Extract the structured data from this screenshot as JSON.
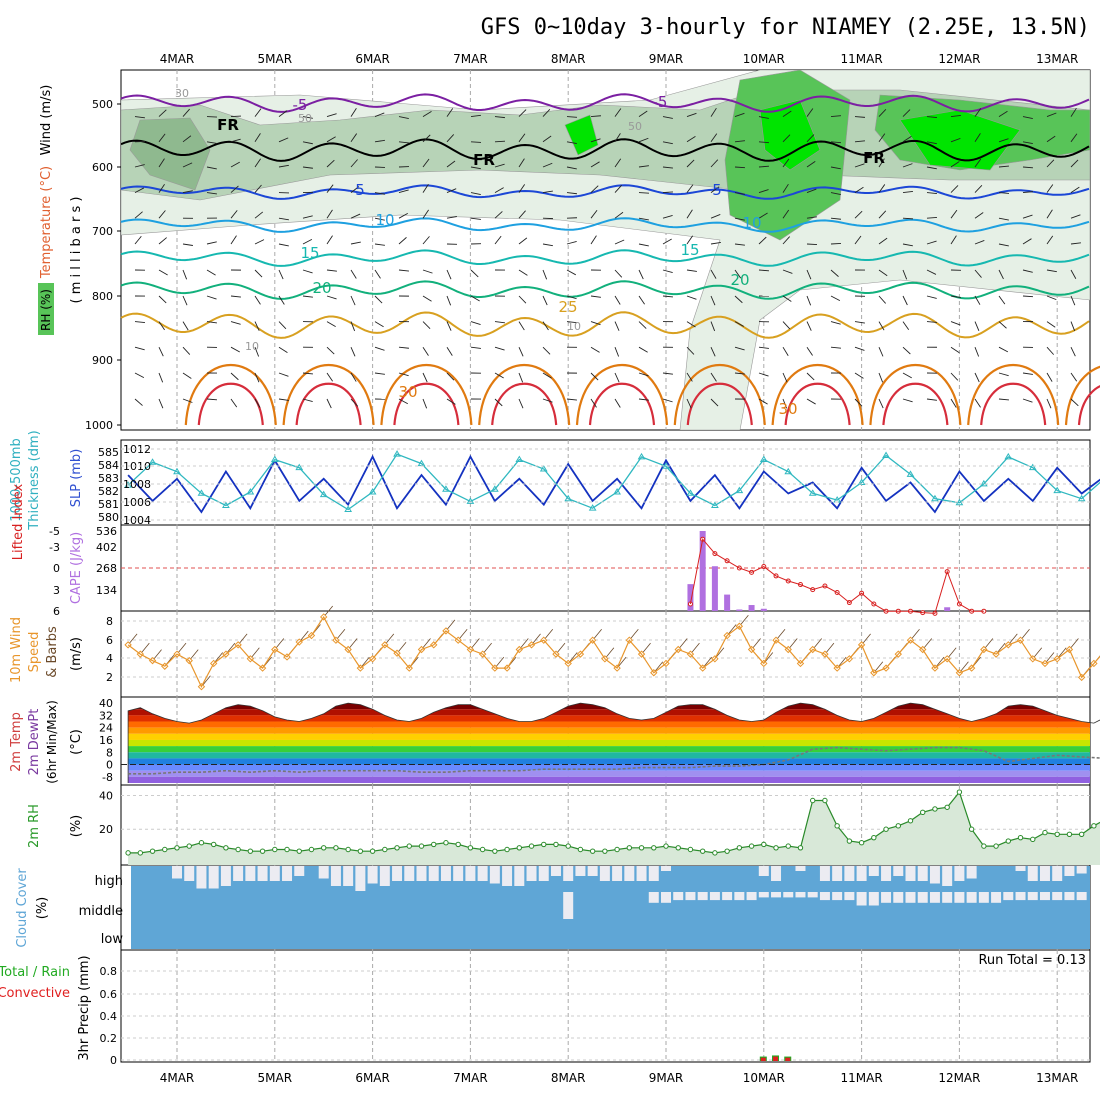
{
  "title": "GFS 0~10day 3-hourly for NIAMEY (2.25E, 13.5N)",
  "colors": {
    "rh_light": "#e6f0e6",
    "rh_mid": "#b7d3b7",
    "rh_dark": "#8fb98f",
    "rh_green": "#58c458",
    "rh_bright": "#00e400",
    "isotherm_neg": "#7b1fa2",
    "isotherm_0": "#000000",
    "isotherm_5": "#1c47d6",
    "isotherm_10": "#1ea0e0",
    "isotherm_15": "#16b8b0",
    "isotherm_20": "#12b07c",
    "isotherm_25": "#d8a020",
    "isotherm_30": "#e07a10",
    "isotherm_35": "#d62d3b",
    "slp": "#1432c0",
    "thickness": "#30b8c0",
    "cape": "#b070e0",
    "lifted": "#d82020",
    "wind": "#e8962c",
    "cloud": "#5fa6d6",
    "cloud_clear": "#ececf2",
    "precip_total": "#22aa22",
    "precip_conv": "#e02020",
    "rh2m": "#2a8a2a"
  },
  "dates": [
    "4MAR",
    "5MAR",
    "6MAR",
    "7MAR",
    "8MAR",
    "9MAR",
    "10MAR",
    "11MAR",
    "12MAR",
    "13MAR"
  ],
  "panels": {
    "upper": {
      "ylabel_left": [
        "Wind (m/s)",
        "Temperature (°C)",
        "RH (%)"
      ],
      "ylabel_right": "( m i l l i b a r s )",
      "levels": [
        "500",
        "600",
        "700",
        "800",
        "900",
        "1000"
      ],
      "isotherm_labels": [
        "-5",
        "FR",
        "5",
        "10",
        "15",
        "20",
        "25",
        "30"
      ],
      "rh_labels": [
        "50",
        "30",
        "10"
      ]
    },
    "slp": {
      "ylabel_a": "1000-500mb",
      "ylabel_b": "Thickness (dm)",
      "ylabel_c": "SLP (mb)",
      "left_ticks": [
        "585",
        "584",
        "583",
        "582",
        "581",
        "580"
      ],
      "right_ticks": [
        "1012",
        "1010",
        "1008",
        "1006",
        "1004"
      ]
    },
    "cape": {
      "ylabel_a": "Lifted Index",
      "ylabel_b": "CAPE (J/kg)",
      "left_ticks": [
        "-5",
        "-3",
        "0",
        "3",
        "6"
      ],
      "right_ticks": [
        "536",
        "402",
        "268",
        "134"
      ]
    },
    "wind": {
      "ylabel_a": "10m Wind",
      "ylabel_b": "Speed",
      "ylabel_c": "& Barbs",
      "ylabel_d": "(m/s)",
      "ticks": [
        "8",
        "6",
        "4",
        "2"
      ]
    },
    "temp": {
      "ylabel_a": "2m Temp",
      "ylabel_b": "2m DewPt",
      "ylabel_c": "(6hr Min/Max)",
      "ylabel_d": "(°C)",
      "ticks": [
        "40",
        "32",
        "24",
        "16",
        "8",
        "0",
        "-8"
      ]
    },
    "rh": {
      "ylabel_a": "2m RH",
      "ylabel_b": "(%)",
      "ticks": [
        "40",
        "20"
      ]
    },
    "cloud": {
      "ylabel_a": "Cloud Cover",
      "ylabel_b": "(%)",
      "rows": [
        "high",
        "middle",
        "low"
      ]
    },
    "precip": {
      "ylabel_a": "Total / Rain",
      "ylabel_b": "Convective",
      "ylabel_c": "3hr Precip (mm)",
      "ticks": [
        "0.8",
        "0.6",
        "0.4",
        "0.2",
        "0"
      ],
      "run_total": "Run Total = 0.13"
    }
  },
  "chart_data": [
    {
      "type": "line",
      "name": "sea level pressure",
      "unit": "mb",
      "ylim": [
        1003,
        1014
      ],
      "x_start": "3MAR 12Z",
      "step_hours": 6,
      "values": [
        1009.5,
        1006,
        1009,
        1004.5,
        1010,
        1005,
        1011.5,
        1006,
        1009,
        1005.5,
        1012,
        1005,
        1009.5,
        1005.5,
        1012,
        1006,
        1009,
        1005.5,
        1011,
        1006,
        1009,
        1005,
        1011.5,
        1006,
        1009.5,
        1005,
        1010,
        1007,
        1008.5,
        1005,
        1010.5,
        1006,
        1008.5,
        1004.5,
        1010,
        1006,
        1009,
        1006,
        1010.5,
        1007,
        1009.5,
        1007.5,
        1013,
        1007,
        1010.5,
        1008,
        1010
      ]
    },
    {
      "type": "line",
      "name": "1000-500mb thickness",
      "unit": "dm",
      "ylim": [
        579.7,
        585.7
      ],
      "x_start": "3MAR 12Z",
      "step_hours": 6,
      "values": [
        582.5,
        584.2,
        583.5,
        581.9,
        581,
        582,
        584.4,
        583.8,
        581.8,
        580.7,
        582,
        584.8,
        584.1,
        582.2,
        581.3,
        582.2,
        584.4,
        583.7,
        581.5,
        580.8,
        582,
        584.6,
        583.9,
        581.9,
        581,
        582.1,
        584.4,
        583.5,
        581.9,
        581.4,
        582.7,
        584.7,
        583.3,
        581.5,
        581.2,
        582.6,
        584.6,
        583.8,
        582.1,
        581.5,
        583.1,
        585,
        584,
        582.2,
        580.6,
        582.4,
        584.3,
        583.6,
        582.7
      ]
    },
    {
      "type": "bar",
      "name": "CAPE",
      "unit": "J/kg",
      "ylim": [
        0,
        536
      ],
      "x_start": "9MAR 06Z",
      "step_hours": 3,
      "values": [
        180,
        536,
        300,
        110,
        10,
        40,
        15,
        0,
        0,
        0,
        0,
        0,
        0,
        0,
        0,
        0,
        0,
        0,
        0,
        0,
        0,
        25
      ]
    },
    {
      "type": "line",
      "name": "Lifted Index",
      "unit": "K",
      "ylim": [
        6,
        -6
      ],
      "x_start": "9MAR 06Z",
      "step_hours": 3,
      "values": [
        5,
        -4,
        -2,
        -1,
        0,
        0.6,
        -0.2,
        1.1,
        1.8,
        2.3,
        3,
        2.5,
        3.4,
        4.8,
        3.5,
        5,
        6,
        6,
        6,
        6.2,
        6.3,
        0.5,
        5,
        6,
        6
      ]
    },
    {
      "type": "line",
      "name": "10m wind speed",
      "unit": "m/s",
      "ylim": [
        0,
        9
      ],
      "x_start": "3MAR 12Z",
      "step_hours": 3,
      "values": [
        5.5,
        4.5,
        3.8,
        3.2,
        4.5,
        3.8,
        1,
        3.5,
        4.5,
        5.5,
        4,
        3,
        5,
        4.2,
        5.8,
        6.5,
        8.5,
        6,
        5,
        3,
        4,
        5.5,
        4.6,
        3,
        5,
        5.5,
        7,
        6,
        5,
        4.5,
        3,
        3,
        5,
        5.5,
        6,
        4.5,
        3.5,
        4.5,
        6,
        4,
        3,
        6,
        4.5,
        2.5,
        3.5,
        5,
        4.5,
        3,
        4,
        6.5,
        7.5,
        5,
        3.5,
        6,
        5,
        3.5,
        5,
        4.5,
        3,
        4,
        5.5,
        2.5,
        3,
        4.5,
        6,
        5,
        3,
        4,
        2.5,
        3,
        5,
        4.5,
        5.5,
        6,
        4,
        3.5,
        4,
        5,
        2,
        3.5,
        5,
        4,
        3
      ]
    },
    {
      "type": "area",
      "name": "2m temperature",
      "unit": "°C",
      "ylim": [
        -12,
        42
      ],
      "x_start": "3MAR 12Z",
      "step_hours": 3,
      "values": [
        35,
        37,
        33,
        30,
        28,
        27,
        29,
        33,
        37,
        39,
        38,
        35,
        31,
        29,
        28,
        30,
        33,
        38,
        40,
        39,
        36,
        32,
        29,
        28,
        30,
        34,
        37,
        39,
        39,
        36,
        33,
        30,
        28,
        28,
        30,
        34,
        38,
        40,
        39,
        37,
        33,
        30,
        29,
        30,
        34,
        38,
        39,
        39,
        36,
        32,
        29,
        28,
        29,
        34,
        38,
        40,
        39,
        36,
        32,
        29,
        28,
        30,
        34,
        38,
        40,
        39,
        36,
        33,
        30,
        28,
        30,
        33,
        38,
        39,
        38,
        35,
        32,
        30,
        28,
        27,
        31
      ]
    },
    {
      "type": "line",
      "name": "2m dewpoint",
      "unit": "°C",
      "ylim": [
        -12,
        42
      ],
      "x_start": "3MAR 12Z",
      "step_hours": 6,
      "values": [
        -6,
        -6,
        -5,
        -5,
        -4,
        -5,
        -4,
        -5,
        -4,
        -4,
        -4,
        -4,
        -5,
        -5,
        -4,
        -4,
        -4,
        -3,
        -3,
        -3,
        -3,
        -2,
        -2,
        -2,
        -1,
        -1,
        0,
        3,
        10,
        11,
        10,
        9,
        10,
        11,
        11,
        9,
        2,
        4,
        6,
        5,
        4,
        5,
        8,
        10,
        0,
        -1,
        -1,
        -1,
        0,
        0,
        0,
        0,
        0,
        -1,
        0,
        -1,
        0,
        0,
        0,
        0,
        0
      ]
    },
    {
      "type": "area",
      "name": "2m relative humidity",
      "unit": "%",
      "ylim": [
        0,
        45
      ],
      "x_start": "3MAR 12Z",
      "step_hours": 3,
      "values": [
        6,
        6,
        7,
        8,
        9,
        10,
        12,
        11,
        9,
        8,
        7,
        7,
        8,
        8,
        7,
        8,
        9,
        9,
        8,
        7,
        7,
        8,
        9,
        10,
        10,
        11,
        12,
        11,
        9,
        8,
        7,
        8,
        9,
        10,
        11,
        11,
        10,
        8,
        7,
        7,
        8,
        9,
        9,
        9,
        10,
        9,
        8,
        7,
        6,
        7,
        9,
        10,
        11,
        9,
        10,
        9,
        37,
        37,
        22,
        13,
        12,
        15,
        20,
        22,
        25,
        30,
        32,
        33,
        42,
        20,
        10,
        10,
        13,
        15,
        14,
        18,
        17,
        17,
        17,
        22,
        26,
        9,
        8,
        8,
        9,
        10,
        11,
        12,
        12,
        13,
        11,
        10,
        9,
        9,
        10,
        12,
        12,
        13,
        14,
        15,
        16
      ]
    },
    {
      "type": "bar",
      "name": "high cloud cover",
      "unit": "%",
      "ylim": [
        0,
        100
      ],
      "x_start": "3MAR 12Z",
      "step_hours": 3,
      "values": [
        40,
        100,
        100,
        100,
        50,
        40,
        10,
        10,
        20,
        40,
        40,
        40,
        40,
        40,
        60,
        100,
        50,
        20,
        20,
        0,
        30,
        20,
        40,
        40,
        40,
        40,
        40,
        40,
        40,
        40,
        30,
        20,
        20,
        40,
        40,
        60,
        40,
        60,
        60,
        40,
        40,
        40,
        40,
        40,
        80,
        100,
        100,
        100,
        100,
        100,
        100,
        100,
        60,
        40,
        100,
        80,
        100,
        40,
        40,
        40,
        40,
        60,
        40,
        60,
        40,
        40,
        30,
        20,
        40,
        50,
        100,
        100,
        100,
        80,
        40,
        40,
        40,
        60,
        70,
        100,
        100,
        100,
        100,
        100,
        90,
        60,
        50,
        80,
        80,
        40,
        40,
        30,
        50,
        70,
        40,
        40,
        40
      ]
    },
    {
      "type": "bar",
      "name": "middle cloud cover",
      "unit": "%",
      "ylim": [
        0,
        100
      ],
      "x_start": "8MAR 00Z",
      "step_hours": 3,
      "values": [
        0,
        100,
        100,
        100,
        100,
        100,
        100,
        60,
        60,
        70,
        70,
        70,
        70,
        70,
        70,
        70,
        80,
        80,
        80,
        80,
        80,
        70,
        70,
        70,
        50,
        50,
        60,
        60,
        60,
        60,
        60,
        60,
        60,
        60,
        60,
        60,
        70,
        70,
        70,
        70,
        70,
        70,
        70,
        100,
        100,
        100,
        100,
        100,
        100,
        80,
        100,
        100,
        100,
        60,
        60,
        80,
        80,
        80,
        80,
        80,
        80,
        80
      ]
    },
    {
      "type": "bar",
      "name": "3hr total precipitation",
      "unit": "mm",
      "ylim": [
        0,
        1
      ],
      "categories": [
        "10MAR 00Z",
        "10MAR 03Z",
        "10MAR 06Z"
      ],
      "values": [
        0.04,
        0.05,
        0.04
      ]
    },
    {
      "type": "bar",
      "name": "3hr convective precipitation",
      "unit": "mm",
      "ylim": [
        0,
        1
      ],
      "categories": [
        "10MAR 00Z",
        "10MAR 03Z",
        "10MAR 06Z"
      ],
      "values": [
        0.03,
        0.04,
        0.03
      ]
    }
  ]
}
